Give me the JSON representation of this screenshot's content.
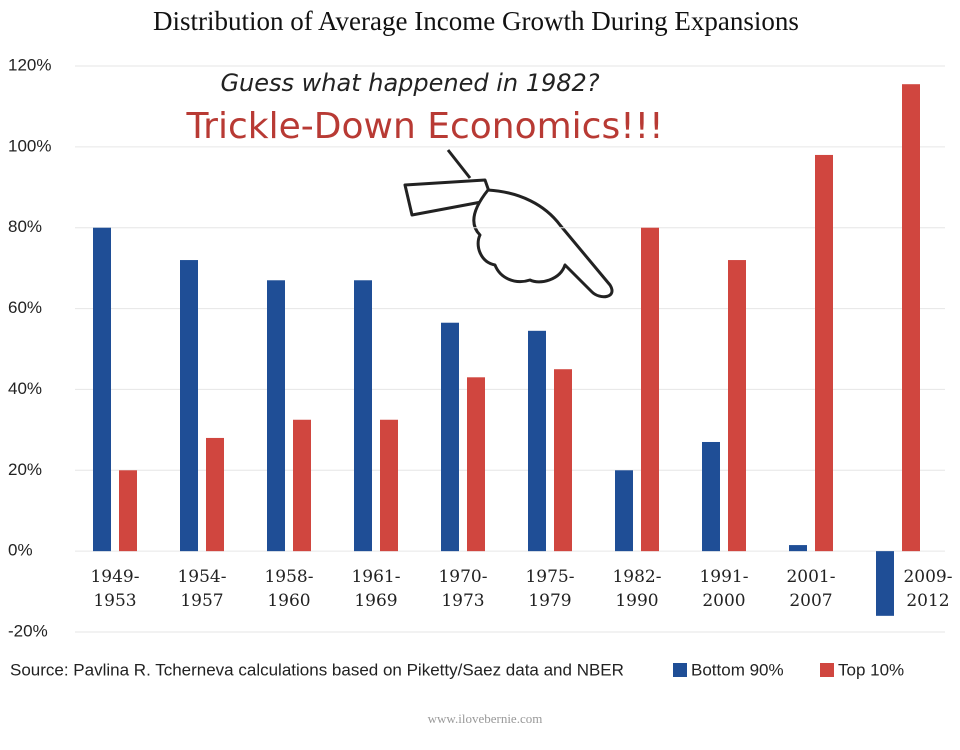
{
  "chart_data": {
    "type": "bar",
    "title": "Distribution of Average Income Growth During Expansions",
    "annotations": [
      "Guess what happened in 1982?",
      "Trickle-Down Economics!!!"
    ],
    "source": "Source: Pavlina R. Tcherneva calculations based on Piketty/Saez data and NBER",
    "watermark": "www.ilovebernie.com",
    "categories": [
      "1949-1953",
      "1954-1957",
      "1958-1960",
      "1961-1969",
      "1970-1973",
      "1975-1979",
      "1982-1990",
      "1991-2000",
      "2001-2007",
      "2009-2012"
    ],
    "series": [
      {
        "name": "Bottom 90%",
        "color": "#1f4e96",
        "values": [
          80,
          72,
          67,
          67,
          56.5,
          54.5,
          20,
          27,
          1.5,
          -16
        ]
      },
      {
        "name": "Top 10%",
        "color": "#d0463f",
        "values": [
          20,
          28,
          32.5,
          32.5,
          43,
          45,
          80,
          72,
          98,
          115.5
        ]
      }
    ],
    "ylim": [
      -20,
      120
    ],
    "yticks": [
      {
        "value": -20,
        "label": "-20%"
      },
      {
        "value": 0,
        "label": "0%"
      },
      {
        "value": 20,
        "label": "20%"
      },
      {
        "value": 40,
        "label": "40%"
      },
      {
        "value": 60,
        "label": "60%"
      },
      {
        "value": 80,
        "label": "80%"
      },
      {
        "value": 100,
        "label": "100%"
      },
      {
        "value": 120,
        "label": "120%"
      }
    ],
    "grid": true
  }
}
